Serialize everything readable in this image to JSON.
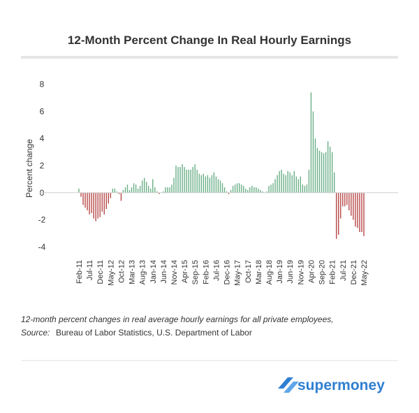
{
  "chart_data": {
    "type": "bar",
    "title": "12-Month Percent Change In Real Hourly Earnings",
    "y_label": "Percent change",
    "note": "12-month percent changes in real average hourly earnings for all private employees,",
    "source_label": "Source:",
    "source": "Bureau of Labor Statistics, U.S. Department of Labor",
    "categories": [
      "Feb-11",
      null,
      null,
      null,
      null,
      "Jul-11",
      null,
      null,
      null,
      null,
      "Dec-11",
      null,
      null,
      null,
      null,
      "May-12",
      null,
      null,
      null,
      null,
      "Oct-12",
      null,
      null,
      null,
      null,
      "Mar-13",
      null,
      null,
      null,
      null,
      "Aug-13",
      null,
      null,
      null,
      null,
      "Jan-14",
      null,
      null,
      null,
      null,
      "Jun-14",
      null,
      null,
      null,
      null,
      "Nov-14",
      null,
      null,
      null,
      null,
      "Apr-15",
      null,
      null,
      null,
      null,
      "Sep-15",
      null,
      null,
      null,
      null,
      "Feb-16",
      null,
      null,
      null,
      null,
      "Jul-16",
      null,
      null,
      null,
      null,
      "Dec-16",
      null,
      null,
      null,
      null,
      "May-17",
      null,
      null,
      null,
      null,
      "Oct-17",
      null,
      null,
      null,
      null,
      "Mar-18",
      null,
      null,
      null,
      null,
      "Aug-18",
      null,
      null,
      null,
      null,
      "Jan-19",
      null,
      null,
      null,
      null,
      "Jun-19",
      null,
      null,
      null,
      null,
      "Nov-19",
      null,
      null,
      null,
      null,
      "Apr-20",
      null,
      null,
      null,
      null,
      "Sep-20",
      null,
      null,
      null,
      null,
      "Feb-21",
      null,
      null,
      null,
      null,
      "Jul-21",
      null,
      null,
      null,
      null,
      "Dec-21",
      null,
      null,
      null,
      null,
      "May-22"
    ],
    "values": [
      0.3,
      -0.3,
      -0.9,
      -1.1,
      -1.3,
      -1.6,
      -1.5,
      -1.9,
      -2.1,
      -1.9,
      -1.8,
      -1.4,
      -1.6,
      -1.2,
      -0.8,
      -0.4,
      0.3,
      0.3,
      0.1,
      -0.1,
      -0.6,
      0.2,
      0.4,
      0.6,
      0.2,
      0.4,
      0.7,
      0.6,
      0.3,
      0.5,
      0.9,
      1.1,
      0.8,
      0.5,
      0.3,
      1.0,
      0.4,
      0.1,
      -0.1,
      0.0,
      0.1,
      0.4,
      0.4,
      0.4,
      0.6,
      1.1,
      2.0,
      1.9,
      1.9,
      2.1,
      1.9,
      1.7,
      1.7,
      1.7,
      1.9,
      2.1,
      1.7,
      1.4,
      1.3,
      1.4,
      1.2,
      1.3,
      1.1,
      1.3,
      1.5,
      1.2,
      1.0,
      0.9,
      0.7,
      0.4,
      0.1,
      -0.1,
      0.2,
      0.5,
      0.6,
      0.7,
      0.7,
      0.6,
      0.5,
      0.3,
      0.2,
      0.4,
      0.5,
      0.4,
      0.4,
      0.3,
      0.2,
      0.1,
      0.0,
      0.1,
      0.5,
      0.6,
      0.7,
      1.0,
      1.3,
      1.6,
      1.7,
      1.4,
      1.3,
      1.6,
      1.5,
      1.3,
      1.6,
      1.2,
      1.0,
      1.2,
      0.6,
      0.5,
      0.6,
      1.7,
      7.4,
      6.0,
      4.0,
      3.3,
      3.1,
      3.0,
      2.9,
      3.0,
      3.8,
      3.4,
      3.0,
      1.5,
      -3.4,
      -3.1,
      -1.9,
      -1.0,
      -1.0,
      -0.9,
      -1.3,
      -1.7,
      -2.0,
      -2.5,
      -2.6,
      -2.9,
      -2.9,
      -3.2
    ],
    "positive_color": "#6aaf86",
    "negative_color": "#b84848",
    "ylim": [
      -4.6,
      8.6
    ],
    "yticks": [
      8,
      6,
      4,
      2,
      0,
      -2,
      -4
    ]
  },
  "brand": "supermoney"
}
